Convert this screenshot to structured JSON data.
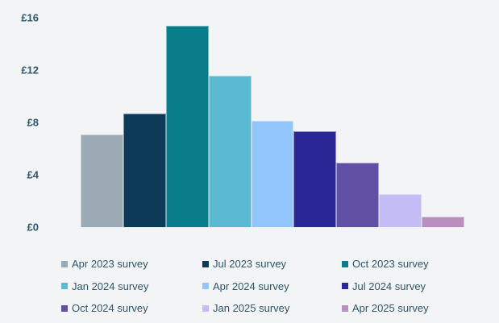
{
  "page": {
    "background_color": "#f3f4f5",
    "text_color": "#2e566e"
  },
  "chart_data": {
    "type": "bar",
    "title": "",
    "xlabel": "",
    "ylabel": "",
    "currency": "£",
    "categories": [
      "Apr 2023 survey",
      "Jul 2023 survey",
      "Oct 2023 survey",
      "Jan 2024 survey",
      "Apr 2024 survey",
      "Jul 2024 survey",
      "Oct 2024 survey",
      "Jan 2025 survey",
      "Apr 2025 survey"
    ],
    "values": [
      7.1,
      8.7,
      15.4,
      11.6,
      8.1,
      7.3,
      4.9,
      2.5,
      0.8
    ],
    "colors": [
      "#9aa9b4",
      "#0d3a56",
      "#0a7d8b",
      "#5bb9d2",
      "#92c5fc",
      "#2a2897",
      "#6151a5",
      "#c4bdf5",
      "#b990bd"
    ],
    "ylim": [
      0,
      16
    ],
    "yticks": [
      {
        "value": 0,
        "label": "£0"
      },
      {
        "value": 4,
        "label": "£4"
      },
      {
        "value": 8,
        "label": "£8"
      },
      {
        "value": 12,
        "label": "£12"
      },
      {
        "value": 16,
        "label": "£16"
      }
    ],
    "grid": false,
    "x_axis_labels_shown": false,
    "legend_position": "bottom",
    "legend_columns": 3
  }
}
